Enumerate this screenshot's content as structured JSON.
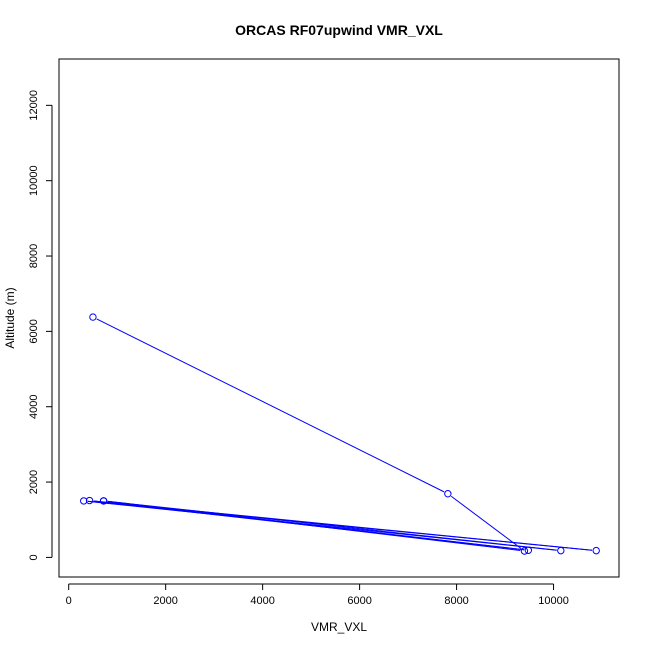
{
  "chart_data": {
    "type": "line",
    "title": "ORCAS RF07upwind VMR_VXL",
    "xlabel": "VMR_VXL",
    "ylabel": "Altitude (m)",
    "xlim": [
      -200,
      11350
    ],
    "ylim": [
      -520,
      13230
    ],
    "x_ticks": [
      0,
      2000,
      4000,
      6000,
      8000,
      10000
    ],
    "y_ticks": [
      0,
      2000,
      4000,
      6000,
      8000,
      10000,
      12000
    ],
    "grid": false,
    "series": [
      {
        "color": "#0000ff",
        "markers": "open-circle",
        "points": [
          {
            "x": 500,
            "y": 6380
          },
          {
            "x": 7820,
            "y": 1690
          },
          {
            "x": 9400,
            "y": 170
          },
          {
            "x": 720,
            "y": 1500
          },
          {
            "x": 9480,
            "y": 190
          },
          {
            "x": 430,
            "y": 1510
          },
          {
            "x": 10880,
            "y": 180
          },
          {
            "x": 310,
            "y": 1500
          },
          {
            "x": 10150,
            "y": 180
          },
          {
            "x": 720,
            "y": 1500
          }
        ]
      }
    ]
  }
}
